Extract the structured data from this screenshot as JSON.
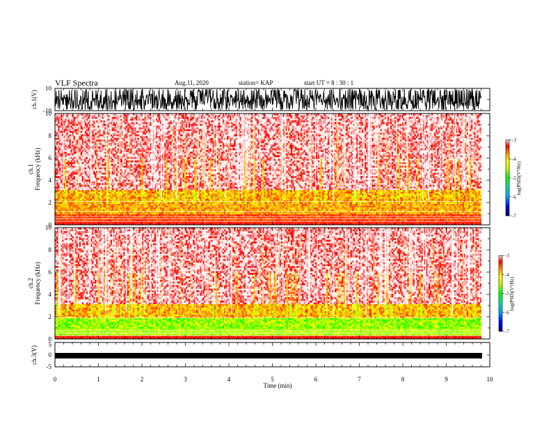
{
  "header": {
    "title": "VLF Spectra",
    "date": "Aug.11, 2020",
    "station": "station= KAP",
    "start": "start  UT =   8  : 30 : 1"
  },
  "chart_data": [
    {
      "type": "line",
      "name": "ch1-waveform",
      "ylabel": "ch.1(V)",
      "ylim": [
        -10,
        10
      ],
      "yticks": [
        "10",
        "-10"
      ],
      "xlim": [
        0,
        10
      ],
      "x_extent_min": 9.8
    },
    {
      "type": "heatmap",
      "name": "ch1-spectrogram",
      "ylabel": "ch.1\nFrequency  (kHz)",
      "ylim": [
        0,
        10
      ],
      "yticks": [
        "0",
        "2",
        "4",
        "6",
        "8",
        "10"
      ],
      "xlim": [
        0,
        10
      ],
      "colorbar": {
        "label": "log(PSD)(V²/Hz)",
        "range": [
          -7,
          -3
        ],
        "ticks": [
          "-3",
          "-4",
          "-5",
          "-6",
          "-7"
        ]
      }
    },
    {
      "type": "heatmap",
      "name": "ch2-spectrogram",
      "ylabel": "ch.2\nFrequency  (kHz)",
      "ylim": [
        0,
        10
      ],
      "yticks": [
        "0",
        "2",
        "4",
        "6",
        "8",
        "10"
      ],
      "xlim": [
        0,
        10
      ],
      "colorbar": {
        "label": "log(PSD)(V²/Hz)",
        "range": [
          -7,
          -3
        ],
        "ticks": [
          "-3",
          "-4",
          "-5",
          "-6",
          "-7"
        ]
      }
    },
    {
      "type": "line",
      "name": "ch3-waveform",
      "ylabel": "ch.3(V)",
      "ylim": [
        -5,
        5
      ],
      "yticks": [
        "5",
        "0",
        "-5"
      ],
      "xlim": [
        0,
        10
      ],
      "xlabel": "Time  (min)",
      "xticks": [
        "0",
        "1",
        "2",
        "3",
        "4",
        "5",
        "6",
        "7",
        "8",
        "9",
        "10"
      ]
    }
  ],
  "colors": {
    "psd_high": "#ff0000",
    "psd_mid_high": "#ffa000",
    "psd_mid": "#ffff00",
    "psd_mid_low": "#00e000",
    "psd_low": "#00c0ff",
    "psd_min": "#0000a0"
  }
}
